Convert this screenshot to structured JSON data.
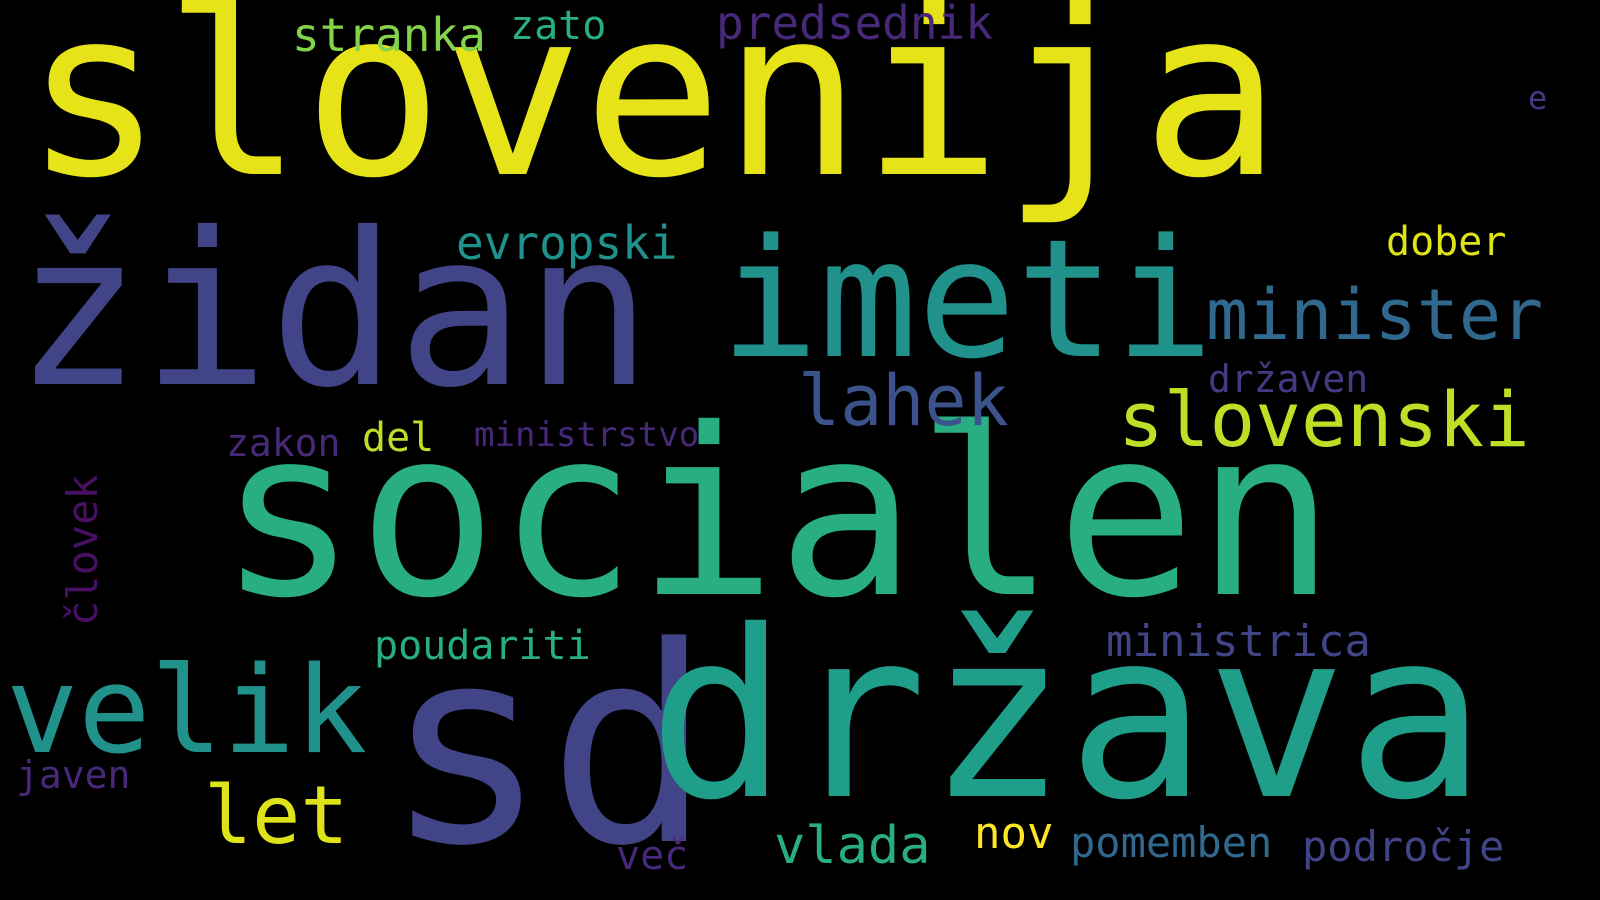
{
  "words": {
    "slovenija": "slovenija",
    "zidan": "židan",
    "imeti": "imeti",
    "socialen": "socialen",
    "sd": "sd",
    "drzava": "država",
    "velik": "velik",
    "minister": "minister",
    "slovenski": "slovenski",
    "lahek": "lahek",
    "evropski": "evropski",
    "predsednik": "predsednik",
    "stranka": "stranka",
    "zato": "zato",
    "e": "e",
    "dober": "dober",
    "drzaven": "državen",
    "zakon": "zakon",
    "del": "del",
    "ministrstvo": "ministrstvo",
    "clovek": "človek",
    "poudariti": "poudariti",
    "ministrica": "ministrica",
    "javen": "javen",
    "let": "let",
    "vlada": "vlada",
    "nov": "nov",
    "pomemben": "pomemben",
    "podrocje": "področje",
    "vec": "več"
  },
  "colors": {
    "background": "#000000",
    "palette": "viridis"
  }
}
